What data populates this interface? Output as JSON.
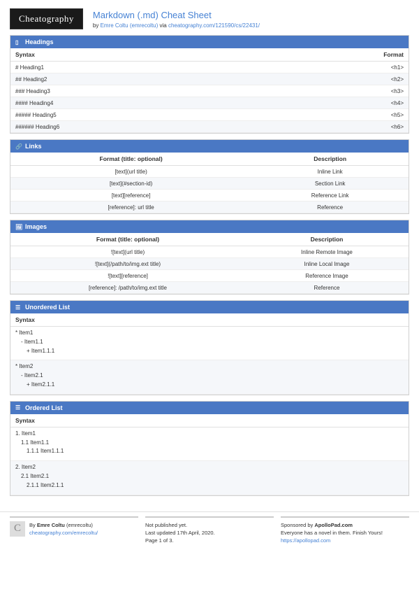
{
  "logo": "Cheatography",
  "title": "Markdown (.md) Cheat Sheet",
  "byline": {
    "prefix": "by ",
    "author": "Emre Coltu (emrecoltu)",
    "via": " via ",
    "url": "cheatography.com/121590/cs/22431/"
  },
  "sections": {
    "headings": {
      "title": "Headings",
      "cols": [
        "Syntax",
        "Format"
      ],
      "rows": [
        [
          "# Heading1",
          "<h1>"
        ],
        [
          "## Heading2",
          "<h2>"
        ],
        [
          "### Heading3",
          "<h3>"
        ],
        [
          "#### Heading4",
          "<h4>"
        ],
        [
          "##### Heading5",
          "<h5>"
        ],
        [
          "###### Heading6",
          "<h6>"
        ]
      ]
    },
    "links": {
      "title": "Links",
      "cols": [
        "Format (title: optional)",
        "Description"
      ],
      "rows": [
        [
          "[text](url title)",
          "Inline Link"
        ],
        [
          "[text](#section-id)",
          "Section Link"
        ],
        [
          "[text][reference]",
          "Reference Link"
        ],
        [
          "[reference]: url title",
          "Reference"
        ]
      ]
    },
    "images": {
      "title": "Images",
      "cols": [
        "Format (title: optional)",
        "Description"
      ],
      "rows": [
        [
          "![text](url title)",
          "Inline Remote Image"
        ],
        [
          "![text](/path/to/img.ext title)",
          "Inline Local Image"
        ],
        [
          "![text][reference]",
          "Reference Image"
        ],
        [
          "[reference]: /path/to/img.ext title",
          "Reference"
        ]
      ]
    },
    "ul": {
      "title": "Unordered List",
      "col": "Syntax",
      "g1": {
        "a": "* Item1",
        "b": "- Item1.1",
        "c": "+ Item1.1.1"
      },
      "g2": {
        "a": "* Item2",
        "b": "- Item2.1",
        "c": "+ Item2.1.1"
      }
    },
    "ol": {
      "title": "Ordered List",
      "col": "Syntax",
      "g1": {
        "a": "1. Item1",
        "b": "1.1 Item1.1",
        "c": "1.1.1 Item1.1.1"
      },
      "g2": {
        "a": "2. Item2",
        "b": "2.1 Item2.1",
        "c": "2.1.1 Item2.1.1"
      }
    }
  },
  "footer": {
    "c1": {
      "by": "By ",
      "author": "Emre Coltu",
      "handle": " (emrecoltu)",
      "url": "cheatography.com/emrecoltu/"
    },
    "c2": {
      "l1": "Not published yet.",
      "l2": "Last updated 17th April, 2020.",
      "l3": "Page 1 of 3."
    },
    "c3": {
      "l1a": "Sponsored by ",
      "l1b": "ApolloPad.com",
      "l2": "Everyone has a novel in them. Finish Yours!",
      "url": "https://apollopad.com"
    }
  }
}
